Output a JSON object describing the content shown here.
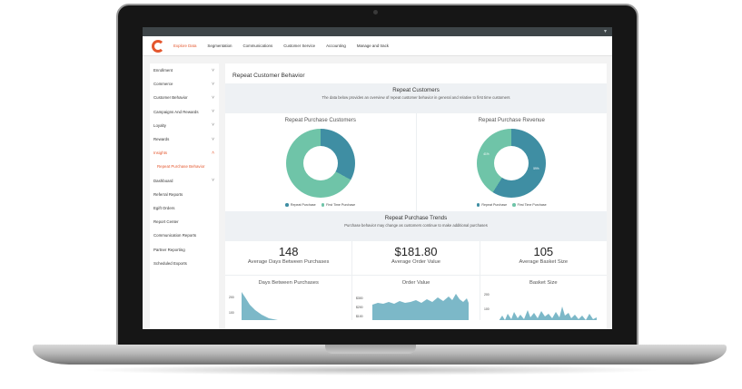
{
  "nav": {
    "items": [
      "Explore Data",
      "Segmentation",
      "Communications",
      "Customer Service",
      "Accounting",
      "Manage and track"
    ]
  },
  "sidebar": {
    "items": [
      {
        "label": "Enrollment",
        "chevron": true
      },
      {
        "label": "Commerce",
        "chevron": true
      },
      {
        "label": "Customer Behavior",
        "chevron": true
      },
      {
        "label": "Campaigns And Rewards",
        "chevron": true
      },
      {
        "label": "Loyalty",
        "chevron": true
      },
      {
        "label": "Rewards",
        "chevron": true
      },
      {
        "label": "Insights",
        "chevron": true,
        "active": true
      },
      {
        "label": "Repeat Purchase Behavior",
        "sub": true
      },
      {
        "label": "Dashboard",
        "chevron": true
      },
      {
        "label": "Referral Reports"
      },
      {
        "label": "Egift Orders"
      },
      {
        "label": "Report Center"
      },
      {
        "label": "Communication Reports"
      },
      {
        "label": "Partner Reporting"
      },
      {
        "label": "Scheduled Exports"
      }
    ]
  },
  "main": {
    "title": "Repeat Customer Behavior",
    "section1": {
      "heading": "Repeat Customers",
      "subheading": "The data below provides an overview of repeat customer behavior in general and relative to first time customers"
    },
    "donuts": [
      {
        "title": "Repeat Purchase Customers",
        "repeat_fraction": 0.33,
        "labels": [
          "",
          ""
        ]
      },
      {
        "title": "Repeat Purchase Revenue",
        "repeat_fraction": 0.59,
        "labels": [
          "41%",
          "59%"
        ]
      }
    ],
    "legend": {
      "repeat": "Repeat Purchase",
      "first": "First Time Purchase"
    },
    "section2": {
      "heading": "Repeat Purchase Trends",
      "subheading": "Purchase behavior may change as customers continue to make additional purchases"
    },
    "stats": [
      {
        "value": "148",
        "label": "Average Days Between Purchases"
      },
      {
        "value": "$181.80",
        "label": "Average Order Value"
      },
      {
        "value": "105",
        "label": "Average Basket Size"
      }
    ],
    "charts": [
      {
        "title": "Days Between Purchases",
        "yticks": [
          "200",
          "100"
        ]
      },
      {
        "title": "Order Value",
        "yticks": [
          "$300",
          "$200",
          "$100"
        ]
      },
      {
        "title": "Basket Size",
        "yticks": [
          "200",
          "100"
        ]
      }
    ]
  },
  "colors": {
    "repeat": "#3f8ea3",
    "first": "#6fc4a8",
    "accent": "#e4572e",
    "area": "#7cb8c8"
  }
}
